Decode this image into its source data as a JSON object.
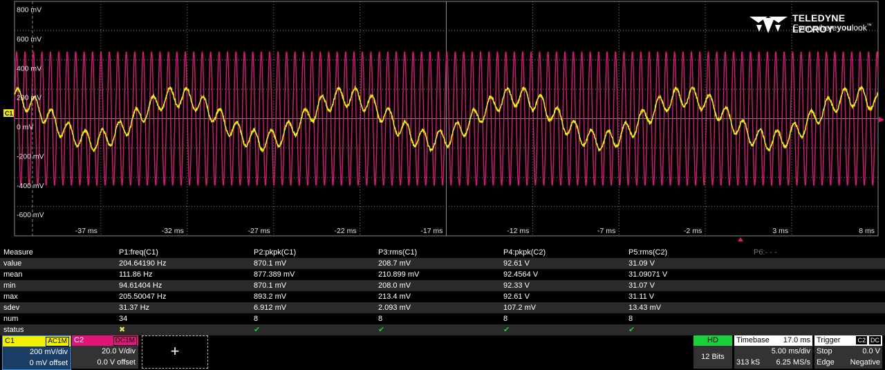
{
  "brand": {
    "name": "TELEDYNE LECROY",
    "tagline_a": "Everywhere",
    "tagline_b": "you",
    "tagline_c": "look",
    "tm": "™"
  },
  "grid": {
    "y_labels": [
      "800 mV",
      "600 mV",
      "400 mV",
      "200 mV",
      "0 mV",
      "-200 mV",
      "-400 mV",
      "-600 mV"
    ],
    "x_labels": [
      "-37 ms",
      "-32 ms",
      "-27 ms",
      "-22 ms",
      "-17 ms",
      "-12 ms",
      "-7 ms",
      "-2 ms",
      "3 ms",
      "8 ms"
    ],
    "channel_marker": "C1"
  },
  "colors": {
    "c1": "#f0f000",
    "c2": "#e0157a",
    "grid": "#8a8a8a",
    "ok": "#19d13a",
    "hd": "#19d13a"
  },
  "waveforms": {
    "c1": {
      "description": "yellow",
      "freq_hz": 204.6419,
      "amp_mv": 290
    },
    "c2": {
      "description": "magenta",
      "freq_hz": 1000,
      "amp_v": 46.3
    }
  },
  "measure": {
    "headers": [
      "Measure",
      "P1:freq(C1)",
      "P2:pkpk(C1)",
      "P3:rms(C1)",
      "P4:pkpk(C2)",
      "P5:rms(C2)",
      "P6:- - -"
    ],
    "rows": [
      {
        "label": "value",
        "cells": [
          "204.64190 Hz",
          "870.1 mV",
          "208.7 mV",
          "92.61 V",
          "31.09 V"
        ]
      },
      {
        "label": "mean",
        "cells": [
          "111.86 Hz",
          "877.389 mV",
          "210.899 mV",
          "92.4564 V",
          "31.09071 V"
        ]
      },
      {
        "label": "min",
        "cells": [
          "94.61404 Hz",
          "870.1 mV",
          "208.0 mV",
          "92.33 V",
          "31.07 V"
        ]
      },
      {
        "label": "max",
        "cells": [
          "205.50047 Hz",
          "893.2 mV",
          "213.4 mV",
          "92.61 V",
          "31.11 V"
        ]
      },
      {
        "label": "sdev",
        "cells": [
          "31.37 Hz",
          "6.912 mV",
          "2.093 mV",
          "107.2 mV",
          "13.43 mV"
        ]
      },
      {
        "label": "num",
        "cells": [
          "34",
          "8",
          "8",
          "8",
          "8"
        ]
      },
      {
        "label": "status",
        "cells": [
          "✖",
          "✔",
          "✔",
          "✔",
          "✔"
        ]
      }
    ]
  },
  "channels": {
    "c1": {
      "name": "C1",
      "coupling": "AC1M",
      "vdiv": "200 mV/div",
      "offset": "0 mV offset"
    },
    "c2": {
      "name": "C2",
      "coupling": "DC1M",
      "vdiv": "20.0 V/div",
      "offset": "0.0 V offset"
    },
    "add": {
      "symbol": "+"
    }
  },
  "hd": {
    "label": "HD",
    "bits": "12 Bits"
  },
  "timebase": {
    "title": "Timebase",
    "delay": "17.0 ms",
    "tdiv": "5.00 ms/div",
    "samples": "313 kS",
    "rate": "6.25 MS/s"
  },
  "trigger": {
    "title": "Trigger",
    "tag_ch": "C2",
    "tag_coupling": "DC",
    "mode": "Stop",
    "level": "0.0 V",
    "type": "Edge",
    "slope": "Negative"
  }
}
